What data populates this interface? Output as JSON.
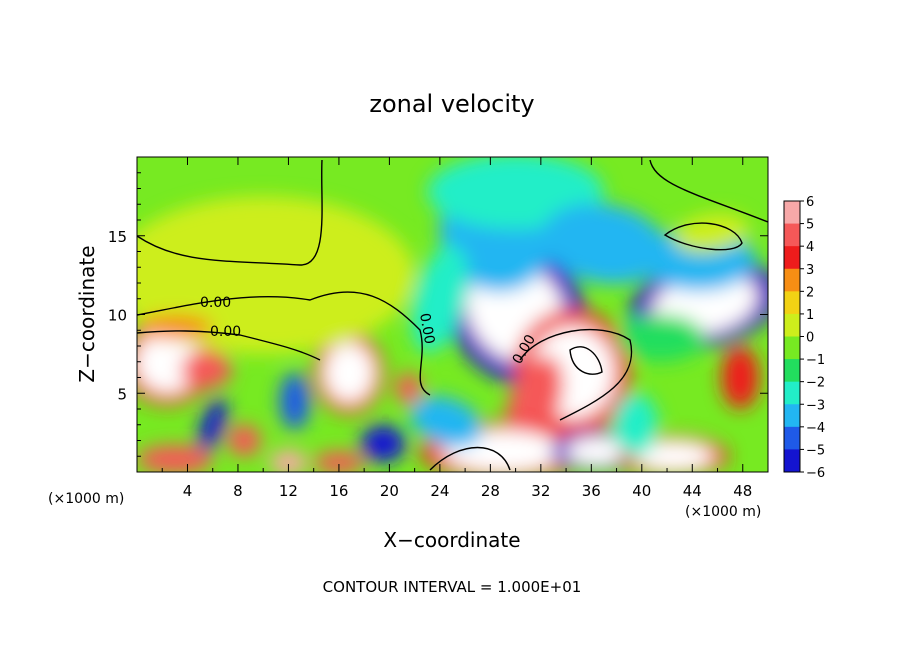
{
  "chart_data": {
    "type": "heatmap",
    "title": "zonal velocity",
    "xlabel": "X−coordinate",
    "ylabel": "Z−coordinate",
    "x_unit_label": "(×1000 m)",
    "y_unit_label": "(×1000 m)",
    "footer": "CONTOUR INTERVAL = 1.000E+01",
    "xlim": [
      0,
      50
    ],
    "ylim": [
      0,
      20
    ],
    "x_ticks": [
      4,
      8,
      12,
      16,
      20,
      24,
      28,
      32,
      36,
      40,
      44,
      48
    ],
    "y_ticks": [
      5,
      10,
      15
    ],
    "colorbar": {
      "levels": [
        6,
        5,
        4,
        3,
        2,
        1,
        0,
        -1,
        -2,
        -3,
        -4,
        -5,
        -6
      ],
      "colors": [
        "#f7a8a8",
        "#f55858",
        "#ee1c1c",
        "#f78e14",
        "#f2d214",
        "#cdee1c",
        "#77ea22",
        "#22de5e",
        "#22eec8",
        "#22b6f2",
        "#1f5ae8",
        "#1414d0",
        "#8a1ab2"
      ]
    },
    "contour_labels": [
      "0.00",
      "0.00",
      "0.00",
      "0.00"
    ],
    "field_features": [
      {
        "x": 30.0,
        "z": 10.2,
        "rx": 3.6,
        "rz": 3.4,
        "value": -7,
        "rot": -38
      },
      {
        "x": 45.0,
        "z": 10.7,
        "rx": 4.2,
        "rz": 1.9,
        "value": -7,
        "rot": -12
      },
      {
        "x": 28.5,
        "z": 15.2,
        "rx": 4.5,
        "rz": 3.8,
        "value": -3.5,
        "rot": -30
      },
      {
        "x": 30.0,
        "z": 17.8,
        "rx": 7.0,
        "rz": 2.4,
        "value": -2.5,
        "rot": 0
      },
      {
        "x": 37.0,
        "z": 14.5,
        "rx": 5.0,
        "rz": 2.5,
        "value": -2.8,
        "rot": 10
      },
      {
        "x": 44.5,
        "z": 13.5,
        "rx": 4.5,
        "rz": 2.0,
        "value": -3,
        "rot": 0
      },
      {
        "x": 45.5,
        "z": 15.2,
        "rx": 3.0,
        "rz": 1.2,
        "value": 0.8,
        "rot": -10
      },
      {
        "x": 24.0,
        "z": 11.0,
        "rx": 2.0,
        "rz": 3.5,
        "value": -2.0,
        "rot": 15
      },
      {
        "x": 2.5,
        "z": 7.0,
        "rx": 2.5,
        "rz": 1.9,
        "value": 7,
        "rot": -15
      },
      {
        "x": 5.5,
        "z": 6.5,
        "rx": 2.0,
        "rz": 1.2,
        "value": 4.5,
        "rot": 0
      },
      {
        "x": 16.8,
        "z": 6.3,
        "rx": 1.9,
        "rz": 1.8,
        "value": 7,
        "rot": 0
      },
      {
        "x": 34.5,
        "z": 6.3,
        "rx": 3.2,
        "rz": 2.8,
        "value": 7,
        "rot": 0
      },
      {
        "x": 31.5,
        "z": 4.5,
        "rx": 2.0,
        "rz": 3.0,
        "value": 4.5,
        "rot": 20
      },
      {
        "x": 29.0,
        "z": 1.3,
        "rx": 4.5,
        "rz": 1.3,
        "value": 7,
        "rot": 0
      },
      {
        "x": 36.5,
        "z": 1.3,
        "rx": 2.5,
        "rz": 0.9,
        "value": -7,
        "rot": 0
      },
      {
        "x": 42.5,
        "z": 1.0,
        "rx": 3.0,
        "rz": 0.9,
        "value": 6.5,
        "rot": 0
      },
      {
        "x": 47.8,
        "z": 6.0,
        "rx": 1.5,
        "rz": 2.0,
        "value": 3.5,
        "rot": 0
      },
      {
        "x": 21.5,
        "z": 5.3,
        "rx": 1.0,
        "rz": 1.0,
        "value": 5,
        "rot": 0
      },
      {
        "x": 6.0,
        "z": 3.0,
        "rx": 0.9,
        "rz": 1.8,
        "value": -5,
        "rot": 20
      },
      {
        "x": 8.5,
        "z": 2.0,
        "rx": 1.3,
        "rz": 1.0,
        "value": 5,
        "rot": 0
      },
      {
        "x": 12.5,
        "z": 4.5,
        "rx": 1.2,
        "rz": 1.8,
        "value": -4,
        "rot": 0
      },
      {
        "x": 19.5,
        "z": 1.8,
        "rx": 1.8,
        "rz": 1.2,
        "value": -5,
        "rot": 0
      },
      {
        "x": 12.0,
        "z": 0.6,
        "rx": 1.5,
        "rz": 0.8,
        "value": 6,
        "rot": 0
      },
      {
        "x": 3.0,
        "z": 0.8,
        "rx": 3.0,
        "rz": 0.9,
        "value": 5,
        "rot": 0
      },
      {
        "x": 16.0,
        "z": 0.6,
        "rx": 2.0,
        "rz": 0.7,
        "value": 5,
        "rot": 0
      },
      {
        "x": 24.5,
        "z": 3.2,
        "rx": 3.0,
        "rz": 1.5,
        "value": -3.5,
        "rot": 20
      },
      {
        "x": 39.5,
        "z": 3.0,
        "rx": 1.8,
        "rz": 2.0,
        "value": -2.5,
        "rot": 0
      },
      {
        "x": 41.5,
        "z": 8.5,
        "rx": 3.5,
        "rz": 1.5,
        "value": -1.5,
        "rot": 0
      },
      {
        "x": 10.0,
        "z": 12.5,
        "rx": 12.0,
        "rz": 5.0,
        "value": 0.8,
        "rot": 0
      },
      {
        "x": 3.0,
        "z": 9.2,
        "rx": 3.0,
        "rz": 0.8,
        "value": 2.5,
        "rot": 0
      }
    ]
  }
}
